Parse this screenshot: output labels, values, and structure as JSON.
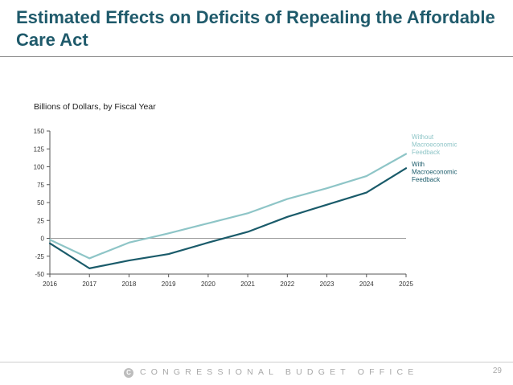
{
  "header": {
    "title": "Estimated Effects on Deficits of Repealing the Affordable Care Act"
  },
  "footer": {
    "logo_text": "C",
    "organization": "CONGRESSIONAL BUDGET OFFICE",
    "page_number": "29"
  },
  "chart_data": {
    "type": "line",
    "title": "",
    "units_label": "Billions of Dollars, by Fiscal Year",
    "xlabel": "",
    "ylabel": "",
    "x": [
      "2016",
      "2017",
      "2018",
      "2019",
      "2020",
      "2021",
      "2022",
      "2023",
      "2024",
      "2025"
    ],
    "yticks": [
      150,
      125,
      100,
      75,
      50,
      25,
      0,
      -25,
      -50
    ],
    "ylim": [
      -50,
      150
    ],
    "grid": false,
    "legend": "end-of-line labels",
    "series": [
      {
        "name": "Without Macroeconomic Feedback",
        "label_lines": [
          "Without",
          "Macroeconomic",
          "Feedback"
        ],
        "color": "#8ec5c7",
        "values": [
          -2,
          -28,
          -6,
          7,
          21,
          35,
          55,
          70,
          87,
          118
        ]
      },
      {
        "name": "With Macroeconomic Feedback",
        "label_lines": [
          "With",
          "Macroeconomic",
          "Feedback"
        ],
        "color": "#1a5b6a",
        "values": [
          -7,
          -42,
          -31,
          -22,
          -6,
          9,
          30,
          47,
          64,
          98
        ]
      }
    ]
  }
}
